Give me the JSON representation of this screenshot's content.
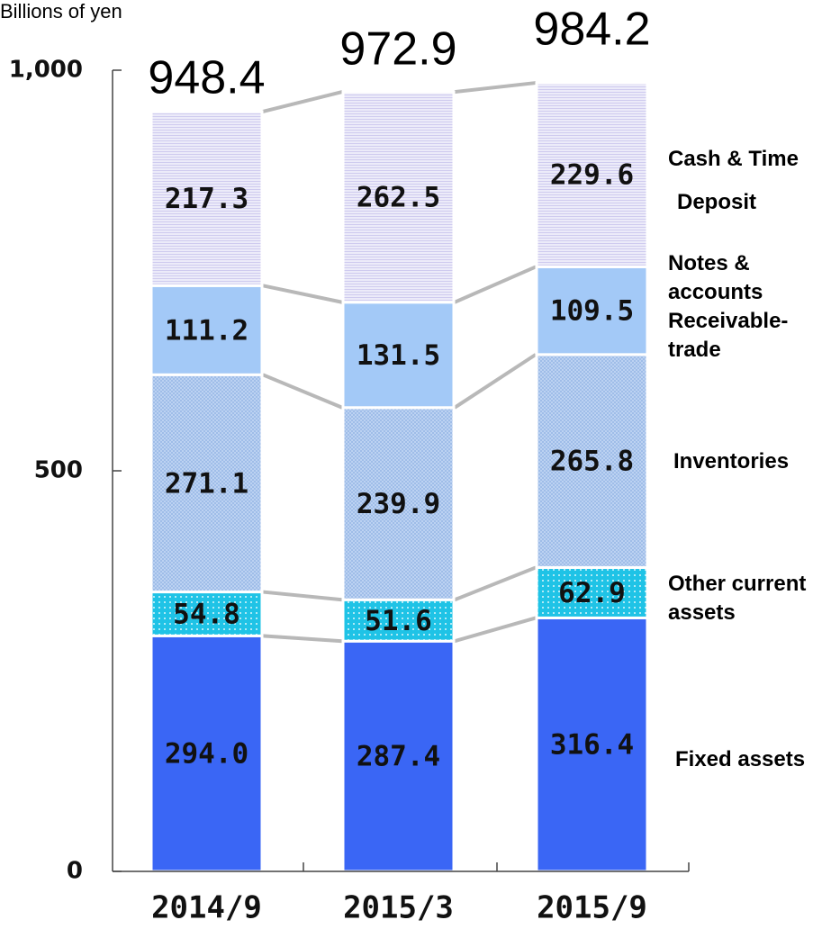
{
  "chart_data": {
    "type": "bar",
    "stacked": true,
    "unit_label": "Billions of yen",
    "categories": [
      "2014/9",
      "2015/3",
      "2015/9"
    ],
    "ylim": [
      0,
      1000
    ],
    "yticks": [
      {
        "value": 0,
        "label": "0"
      },
      {
        "value": 500,
        "label": "500"
      },
      {
        "value": 1000,
        "label": "1,000"
      }
    ],
    "totals": [
      "948.4",
      "972.9",
      "984.2"
    ],
    "series": [
      {
        "name": "Fixed assets",
        "lines": [
          "Fixed assets"
        ],
        "color": "#3a66f5",
        "pattern": "solid",
        "values": [
          294.0,
          287.4,
          316.4
        ],
        "labels": [
          "294.0",
          "287.4",
          "316.4"
        ]
      },
      {
        "name": "Other current assets",
        "lines": [
          "Other  current",
          "assets"
        ],
        "color": "#1fc3e6",
        "pattern": "dots",
        "values": [
          54.8,
          51.6,
          62.9
        ],
        "labels": [
          "54.8",
          "51.6",
          "62.9"
        ]
      },
      {
        "name": "Inventories",
        "lines": [
          "Inventories"
        ],
        "color": "#bcd2f2",
        "pattern": "crosshatch",
        "values": [
          271.1,
          239.9,
          265.8
        ],
        "labels": [
          "271.1",
          "239.9",
          "265.8"
        ]
      },
      {
        "name": "Notes & accounts Receivable-trade",
        "lines": [
          "Notes &",
          "accounts",
          "Receivable-",
          "trade"
        ],
        "color": "#a3c9f7",
        "pattern": "solid",
        "values": [
          111.2,
          131.5,
          109.5
        ],
        "labels": [
          "111.2",
          "131.5",
          "109.5"
        ]
      },
      {
        "name": "Cash & Time Deposit",
        "lines": [
          "Cash & Time",
          "Deposit"
        ],
        "color": "#e6e4f7",
        "pattern": "hlines",
        "values": [
          217.3,
          262.5,
          229.6
        ],
        "labels": [
          "217.3",
          "262.5",
          "229.6"
        ]
      }
    ],
    "legend_position": "right",
    "connector_lines": true,
    "grid": false
  }
}
